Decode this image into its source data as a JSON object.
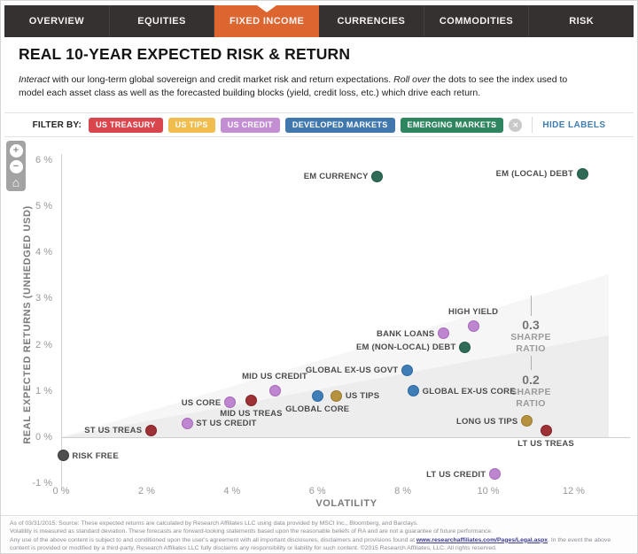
{
  "nav": {
    "tabs": [
      {
        "label": "OVERVIEW",
        "active": false
      },
      {
        "label": "EQUITIES",
        "active": false
      },
      {
        "label": "FIXED INCOME",
        "active": true
      },
      {
        "label": "CURRENCIES",
        "active": false
      },
      {
        "label": "COMMODITIES",
        "active": false
      },
      {
        "label": "RISK",
        "active": false
      }
    ]
  },
  "header": {
    "title": "REAL 10-YEAR EXPECTED RISK & RETURN",
    "description_lines": [
      [
        {
          "text": "Interact",
          "italic": true
        },
        {
          "text": " with our long-term global sovereign and credit market risk and return expectations.  ",
          "italic": false
        },
        {
          "text": "Roll over",
          "italic": true
        },
        {
          "text": " the dots to see the index used to",
          "italic": false
        }
      ],
      [
        {
          "text": "model each asset class as well as the forecasted building blocks (yield, credit loss, etc.) which drive each return.",
          "italic": false
        }
      ]
    ]
  },
  "filter": {
    "label": "FILTER BY:",
    "buttons": [
      {
        "label": "US TREASURY",
        "color": "#d9464d"
      },
      {
        "label": "US TIPS",
        "color": "#f0bd4e"
      },
      {
        "label": "US CREDIT",
        "color": "#c38fd2"
      },
      {
        "label": "DEVELOPED MARKETS",
        "color": "#4077ad"
      },
      {
        "label": "EMERGING MARKETS",
        "color": "#2f8560"
      }
    ],
    "clear_icon": "✕",
    "hide_labels": "HIDE LABELS"
  },
  "zoom_controls": {
    "zoom_in": "+",
    "zoom_out": "−",
    "reset": "⌂"
  },
  "chart_data": {
    "type": "scatter",
    "title": "REAL 10-YEAR EXPECTED RISK & RETURN",
    "xlabel": "VOLATILITY",
    "ylabel": "REAL EXPECTED RETURNS (UNHEDGED USD)",
    "xlim": [
      0,
      13.4
    ],
    "ylim": [
      -1.6,
      6.2
    ],
    "x_ticks": [
      0,
      2,
      4,
      6,
      8,
      10,
      12
    ],
    "y_ticks": [
      6,
      5,
      4,
      3,
      2,
      1,
      0,
      -1
    ],
    "tick_suffix": " %",
    "grid": false,
    "legend_position": "none",
    "sharpe_annotations": [
      {
        "value": "0.3",
        "lines": [
          "SHARPE",
          "RATIO"
        ]
      },
      {
        "value": "0.2",
        "lines": [
          "SHARPE",
          "RATIO"
        ]
      }
    ],
    "points": [
      {
        "label": "RISK FREE",
        "group": "risk-free",
        "volatility": 0.05,
        "ret": -0.4,
        "label_pos": "right"
      },
      {
        "label": "ST US TREAS",
        "group": "us-treasury",
        "volatility": 2.1,
        "ret": 0.15,
        "label_pos": "left"
      },
      {
        "label": "ST US CREDIT",
        "group": "us-credit",
        "volatility": 2.95,
        "ret": 0.3,
        "label_pos": "right"
      },
      {
        "label": "US CORE",
        "group": "us-credit",
        "volatility": 3.95,
        "ret": 0.75,
        "label_pos": "left"
      },
      {
        "label": "MID US TREAS",
        "group": "us-treasury",
        "volatility": 4.45,
        "ret": 0.8,
        "label_pos": "below"
      },
      {
        "label": "MID US CREDIT",
        "group": "us-credit",
        "volatility": 5.0,
        "ret": 1.0,
        "label_pos": "above"
      },
      {
        "label": "GLOBAL CORE",
        "group": "developed",
        "volatility": 6.0,
        "ret": 0.9,
        "label_pos": "below"
      },
      {
        "label": "US TIPS",
        "group": "us-tips",
        "volatility": 6.45,
        "ret": 0.9,
        "label_pos": "right"
      },
      {
        "label": "EM CURRENCY",
        "group": "emerging",
        "volatility": 7.4,
        "ret": 5.65,
        "label_pos": "left"
      },
      {
        "label": "GLOBAL EX-US GOVT",
        "group": "developed",
        "volatility": 8.1,
        "ret": 1.45,
        "label_pos": "left"
      },
      {
        "label": "GLOBAL EX-US CORE",
        "group": "developed",
        "volatility": 8.25,
        "ret": 1.0,
        "label_pos": "right"
      },
      {
        "label": "BANK LOANS",
        "group": "us-credit",
        "volatility": 8.95,
        "ret": 2.25,
        "label_pos": "left"
      },
      {
        "label": "EM (NON-LOCAL) DEBT",
        "group": "emerging",
        "volatility": 9.45,
        "ret": 1.95,
        "label_pos": "left"
      },
      {
        "label": "HIGH YIELD",
        "group": "us-credit",
        "volatility": 9.65,
        "ret": 2.4,
        "label_pos": "above"
      },
      {
        "label": "LONG US TIPS",
        "group": "us-tips",
        "volatility": 10.9,
        "ret": 0.35,
        "label_pos": "left"
      },
      {
        "label": "LT US TREAS",
        "group": "us-treasury",
        "volatility": 11.35,
        "ret": 0.15,
        "label_pos": "below"
      },
      {
        "label": "LT US CREDIT",
        "group": "us-credit",
        "volatility": 10.15,
        "ret": -0.8,
        "label_pos": "left"
      },
      {
        "label": "EM (LOCAL) DEBT",
        "group": "emerging",
        "volatility": 12.2,
        "ret": 5.7,
        "label_pos": "left"
      }
    ],
    "group_colors": {
      "us-treasury": {
        "fill": "#9e3136",
        "stroke": "#822227"
      },
      "us-tips": {
        "fill": "#b6923f",
        "stroke": "#997a2e"
      },
      "us-credit": {
        "fill": "#bd86ce",
        "stroke": "#a668bb"
      },
      "developed": {
        "fill": "#3f7db6",
        "stroke": "#2c68a3"
      },
      "emerging": {
        "fill": "#2f6b57",
        "stroke": "#1f5844"
      },
      "risk-free": {
        "fill": "#4f4f4f",
        "stroke": "#3a3a3a"
      }
    }
  },
  "footer": {
    "lines": [
      {
        "parts": [
          {
            "text": "As of 03/31/2015. Source: These expected returns are calculated by Research Affiliates LLC using data provided by MSCI Inc., Bloomberg, and Barclays."
          }
        ]
      },
      {
        "parts": [
          {
            "text": "Volatility is measured as standard deviation. These forecasts are forward-looking statements based upon the reasonable beliefs of RA and are not a guarantee of future performance."
          }
        ]
      },
      {
        "parts": [
          {
            "text": "Any use of the above content is subject to and conditioned upon the user's agreement with all important disclosures, disclaimers and provisions found at "
          },
          {
            "text": "www.researchaffiliates.com/Pages/Legal.aspx",
            "link": true
          },
          {
            "text": ". In the event the above"
          }
        ]
      },
      {
        "parts": [
          {
            "text": "content is provided or modified by a third-party, Research Affiliates LLC fully disclaims any responsibility or liability for such content. ©2015 Research Affiliates, LLC. All rights reserved."
          }
        ]
      }
    ]
  },
  "colors": {
    "nav_bg": "#343130",
    "nav_active": "#dd6530",
    "link_blue": "#3e7cb4"
  }
}
